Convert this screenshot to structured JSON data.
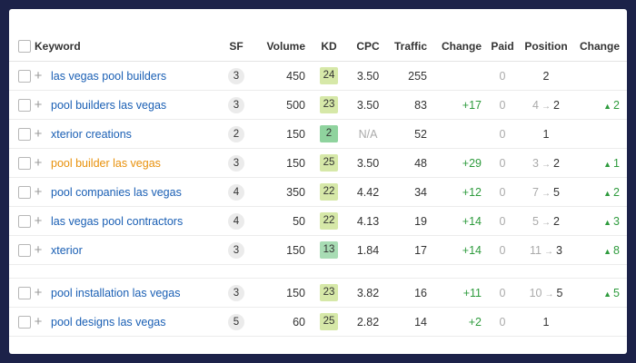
{
  "headers": {
    "keyword": "Keyword",
    "sf": "SF",
    "volume": "Volume",
    "kd": "KD",
    "cpc": "CPC",
    "traffic": "Traffic",
    "change": "Change",
    "paid": "Paid",
    "position": "Position",
    "position_change": "Change"
  },
  "colors": {
    "keyword_link": "#1a5fb4",
    "keyword_highlight": "#e8910c",
    "positive_change": "#2e9b3d",
    "kd_easy": "#8fd39e",
    "kd_medium": "#d6e8a8"
  },
  "icons": {
    "add": "+",
    "arrow": "→",
    "up": "▲"
  },
  "rows": [
    {
      "keyword": "las vegas pool builders",
      "sf": "3",
      "volume": "450",
      "kd": "24",
      "kd_color": "#d6e8a8",
      "cpc": "3.50",
      "traffic": "255",
      "change": "",
      "paid": "0",
      "pos_from": "",
      "pos_to": "2",
      "pos_change": ""
    },
    {
      "keyword": "pool builders las vegas",
      "sf": "3",
      "volume": "500",
      "kd": "23",
      "kd_color": "#d6e8a8",
      "cpc": "3.50",
      "traffic": "83",
      "change": "+17",
      "paid": "0",
      "pos_from": "4",
      "pos_to": "2",
      "pos_change": "2"
    },
    {
      "keyword": "xterior creations",
      "sf": "2",
      "volume": "150",
      "kd": "2",
      "kd_color": "#8fd39e",
      "cpc": "N/A",
      "traffic": "52",
      "change": "",
      "paid": "0",
      "pos_from": "",
      "pos_to": "1",
      "pos_change": ""
    },
    {
      "keyword": "pool builder las vegas",
      "sf": "3",
      "volume": "150",
      "kd": "25",
      "kd_color": "#d6e8a8",
      "cpc": "3.50",
      "traffic": "48",
      "change": "+29",
      "paid": "0",
      "pos_from": "3",
      "pos_to": "2",
      "pos_change": "1",
      "highlight": true
    },
    {
      "keyword": "pool companies las vegas",
      "sf": "4",
      "volume": "350",
      "kd": "22",
      "kd_color": "#d6e8a8",
      "cpc": "4.42",
      "traffic": "34",
      "change": "+12",
      "paid": "0",
      "pos_from": "7",
      "pos_to": "5",
      "pos_change": "2"
    },
    {
      "keyword": "las vegas pool contractors",
      "sf": "4",
      "volume": "50",
      "kd": "22",
      "kd_color": "#d6e8a8",
      "cpc": "4.13",
      "traffic": "19",
      "change": "+14",
      "paid": "0",
      "pos_from": "5",
      "pos_to": "2",
      "pos_change": "3"
    },
    {
      "keyword": "xterior",
      "sf": "3",
      "volume": "150",
      "kd": "13",
      "kd_color": "#a8dcb4",
      "cpc": "1.84",
      "traffic": "17",
      "change": "+14",
      "paid": "0",
      "pos_from": "11",
      "pos_to": "3",
      "pos_change": "8"
    },
    {
      "gap": true
    },
    {
      "keyword": "pool installation las vegas",
      "sf": "3",
      "volume": "150",
      "kd": "23",
      "kd_color": "#d6e8a8",
      "cpc": "3.82",
      "traffic": "16",
      "change": "+11",
      "paid": "0",
      "pos_from": "10",
      "pos_to": "5",
      "pos_change": "5"
    },
    {
      "keyword": "pool designs las vegas",
      "sf": "5",
      "volume": "60",
      "kd": "25",
      "kd_color": "#d6e8a8",
      "cpc": "2.82",
      "traffic": "14",
      "change": "+2",
      "paid": "0",
      "pos_from": "",
      "pos_to": "1",
      "pos_change": ""
    }
  ]
}
